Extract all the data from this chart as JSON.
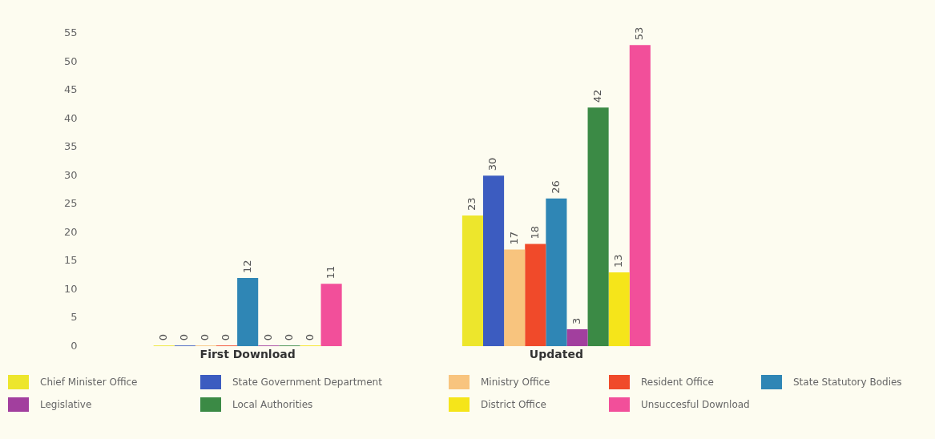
{
  "chart_data": {
    "type": "bar",
    "categories": [
      "First Download",
      "Updated"
    ],
    "series": [
      {
        "name": "Chief Minister Office",
        "color": "#ede62c",
        "values": [
          0,
          23
        ]
      },
      {
        "name": "State Government Department",
        "color": "#3c5cc0",
        "values": [
          0,
          30
        ]
      },
      {
        "name": "Ministry Office",
        "color": "#f8c47e",
        "values": [
          0,
          17
        ]
      },
      {
        "name": "Resident Office",
        "color": "#f04a2a",
        "values": [
          0,
          18
        ]
      },
      {
        "name": "State Statutory Bodies",
        "color": "#2f86b5",
        "values": [
          12,
          26
        ]
      },
      {
        "name": "Legislative",
        "color": "#a23f9e",
        "values": [
          0,
          3
        ]
      },
      {
        "name": "Local Authorities",
        "color": "#3b8a45",
        "values": [
          0,
          42
        ]
      },
      {
        "name": "District Office",
        "color": "#f5e51a",
        "values": [
          0,
          13
        ]
      },
      {
        "name": "Unsuccesful Download",
        "color": "#f24f9a",
        "values": [
          11,
          53
        ]
      }
    ],
    "ylim": [
      0,
      55
    ],
    "yticks": [
      0,
      5,
      10,
      15,
      20,
      25,
      30,
      35,
      40,
      45,
      50,
      55
    ],
    "grid": false,
    "legend": "bottom",
    "data_labels": true
  }
}
